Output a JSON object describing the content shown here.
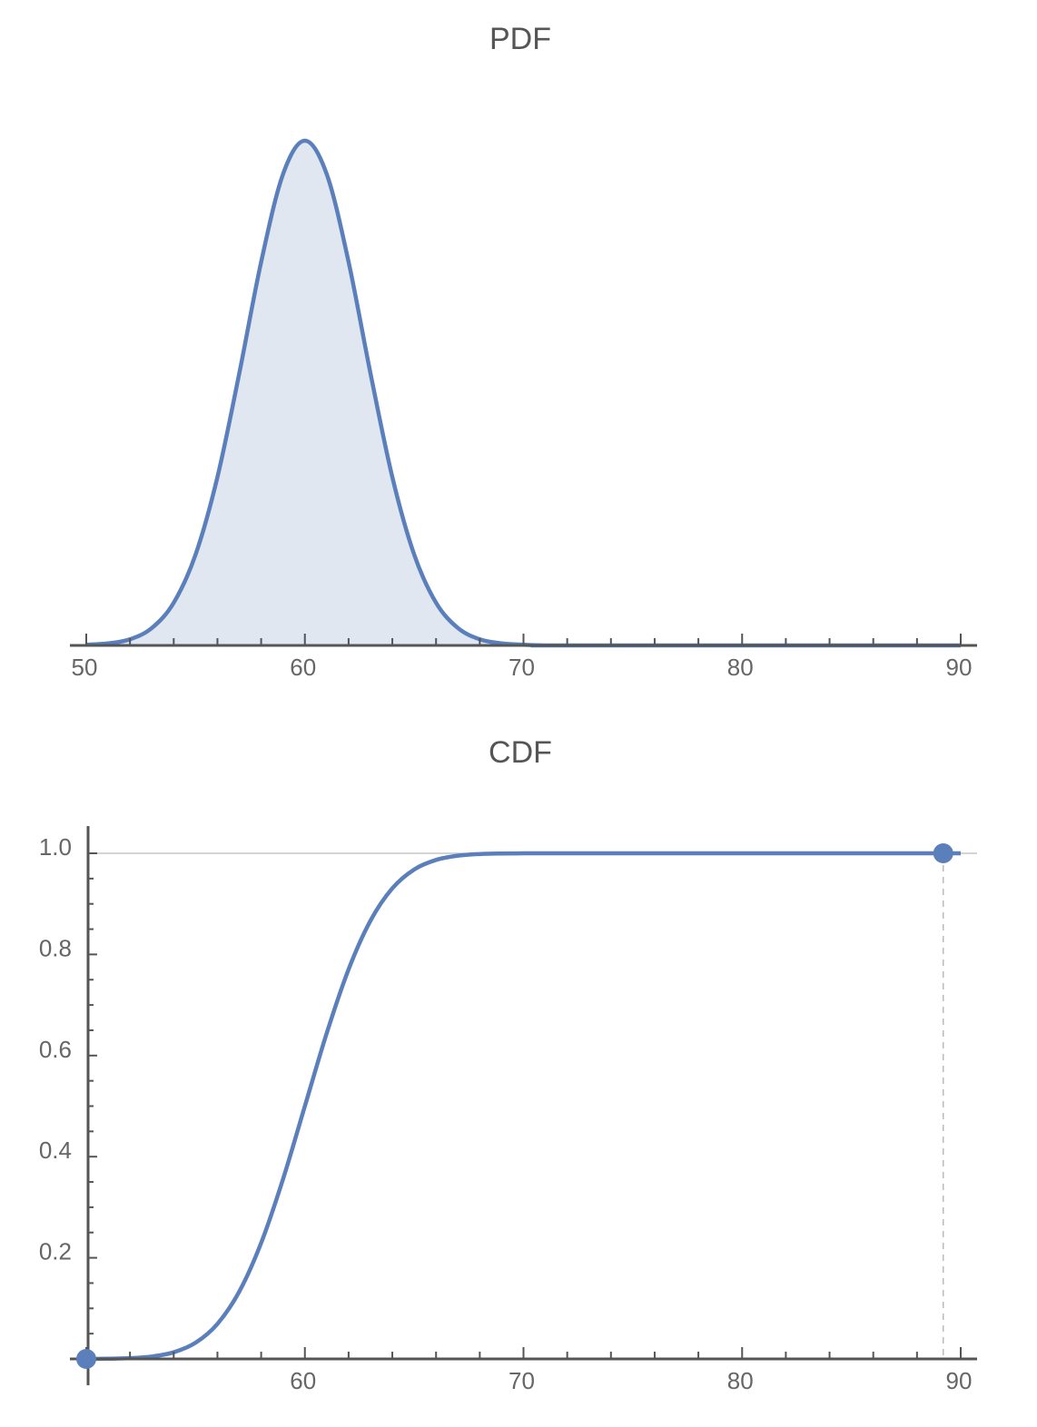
{
  "chart_data": [
    {
      "type": "area",
      "title": "PDF",
      "xlabel": "",
      "ylabel": "",
      "xlim": [
        50,
        90
      ],
      "ylim": [
        0,
        0.1478
      ],
      "x_ticks": [
        50,
        60,
        70,
        80,
        90
      ],
      "x_minor_step": 2,
      "y_ticks": [],
      "grid": false,
      "colors": {
        "line": "#5a7fbb",
        "fill": "#e0e7f1",
        "axis": "#555555"
      },
      "x": [
        50,
        51,
        52,
        53,
        54,
        55,
        56,
        57,
        58,
        59,
        60,
        61,
        62,
        63,
        64,
        65,
        66,
        67,
        68,
        69,
        70,
        71,
        72,
        90
      ],
      "y": [
        0.0002,
        0.0006,
        0.0018,
        0.0051,
        0.0125,
        0.0266,
        0.0493,
        0.0797,
        0.1123,
        0.138,
        0.1478,
        0.138,
        0.1123,
        0.0797,
        0.0493,
        0.0266,
        0.0125,
        0.0051,
        0.0018,
        0.0006,
        0.0002,
        0.0,
        0.0,
        0.0
      ]
    },
    {
      "type": "line",
      "title": "CDF",
      "xlabel": "",
      "ylabel": "",
      "xlim": [
        50,
        90
      ],
      "ylim": [
        0,
        1.0
      ],
      "x_ticks": [
        60,
        70,
        80,
        90
      ],
      "x_minor_step": 2,
      "y_ticks": [
        0.2,
        0.4,
        0.6,
        0.8,
        1.0
      ],
      "y_tick_labels": [
        "0.2",
        "0.4",
        "0.6",
        "0.8",
        "1.0"
      ],
      "y_minor_step": 0.05,
      "grid": "horizontal line at 1.0",
      "colors": {
        "line": "#5a7fbb",
        "axis": "#555555",
        "grid": "#bbbbbb"
      },
      "x": [
        50,
        51,
        52,
        53,
        54,
        55,
        56,
        57,
        58,
        59,
        60,
        61,
        62,
        63,
        64,
        65,
        66,
        67,
        68,
        69,
        70,
        71,
        72,
        90
      ],
      "y": [
        0.0001,
        0.0004,
        0.0015,
        0.0048,
        0.0131,
        0.032,
        0.0693,
        0.1333,
        0.2294,
        0.3556,
        0.5,
        0.6444,
        0.7706,
        0.8667,
        0.9307,
        0.968,
        0.9869,
        0.9952,
        0.9985,
        0.9996,
        0.9999,
        1.0,
        1.0,
        1.0
      ],
      "markers": [
        {
          "x": 50,
          "y": 0
        },
        {
          "x": 89.2,
          "y": 1.0
        }
      ]
    }
  ]
}
